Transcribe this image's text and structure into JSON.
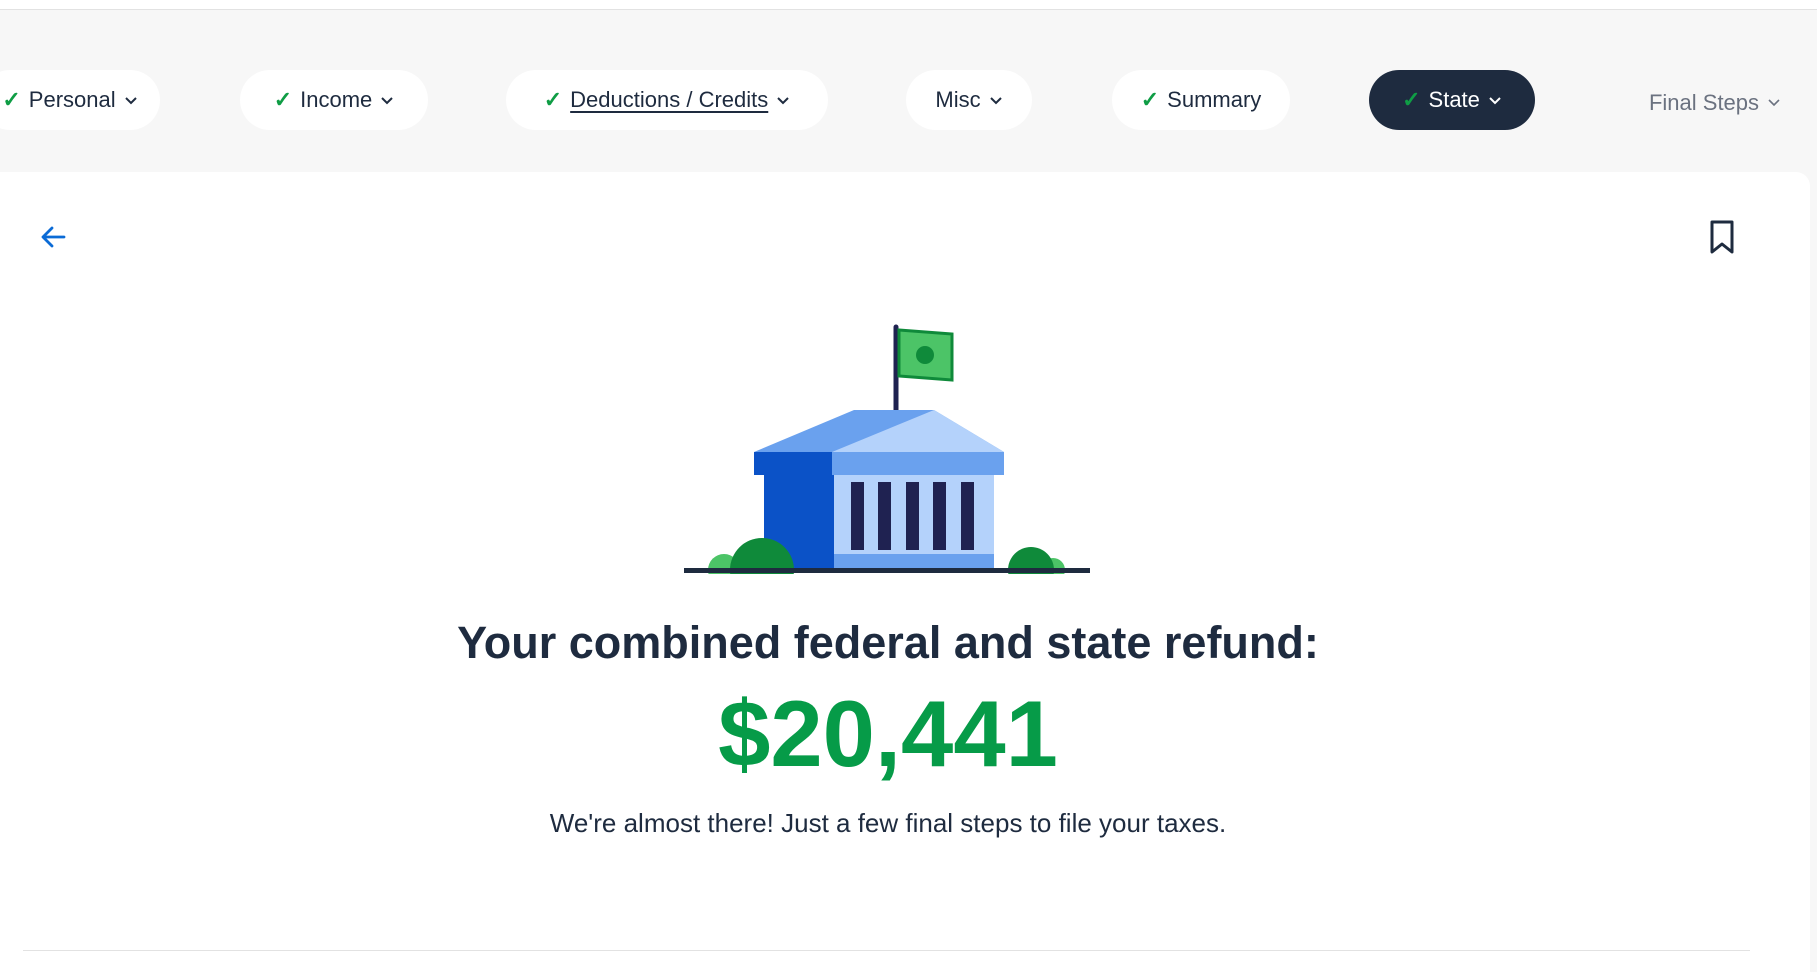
{
  "nav": {
    "steps": [
      {
        "label": "Personal",
        "completed": true,
        "dropdown": true
      },
      {
        "label": "Income",
        "completed": true,
        "dropdown": true
      },
      {
        "label": "Deductions / Credits",
        "completed": true,
        "dropdown": true
      },
      {
        "label": "Misc",
        "completed": false,
        "dropdown": true
      },
      {
        "label": "Summary",
        "completed": true,
        "dropdown": false
      },
      {
        "label": "State",
        "completed": true,
        "dropdown": true,
        "active": true
      },
      {
        "label": "Final Steps",
        "completed": false,
        "dropdown": true
      }
    ]
  },
  "main": {
    "back_icon": "arrow-left-icon",
    "bookmark_icon": "bookmark-icon",
    "illustration": "government-building-with-money-flag",
    "heading": "Your combined federal and state refund:",
    "amount": "$20,441",
    "message": "We're almost there! Just a few final steps to file your taxes."
  },
  "colors": {
    "navy": "#1e2b3f",
    "green": "#069b48",
    "link_blue": "#0b6bd6",
    "background": "#f7f7f7"
  }
}
